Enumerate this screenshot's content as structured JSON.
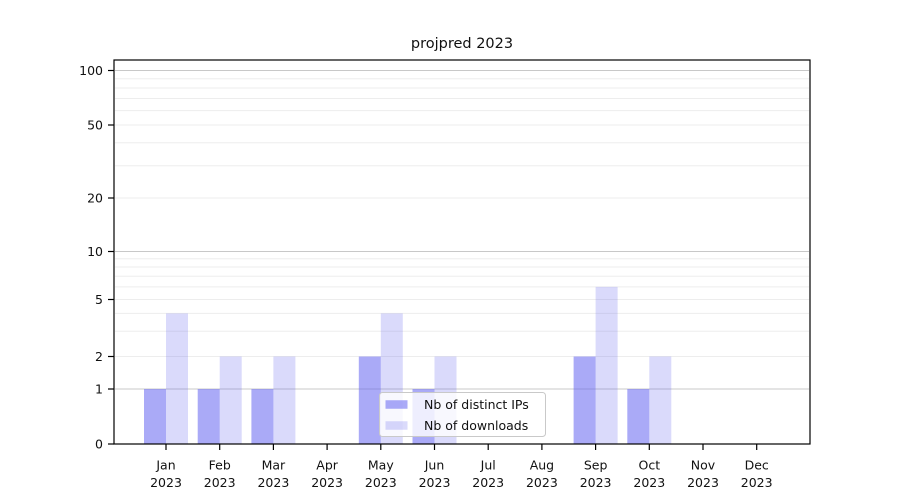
{
  "figure": {
    "background": "#ffffff"
  },
  "chart_data": {
    "type": "bar",
    "title": "projpred 2023",
    "categories": [
      "Jan",
      "Feb",
      "Mar",
      "Apr",
      "May",
      "Jun",
      "Jul",
      "Aug",
      "Sep",
      "Oct",
      "Nov",
      "Dec"
    ],
    "x_tick_second_line": "2023",
    "series": [
      {
        "name": "Nb of distinct IPs",
        "values": [
          1,
          1,
          1,
          0,
          2,
          1,
          0,
          0,
          2,
          1,
          0,
          0
        ],
        "fill": "rgba(100,100,240,0.55)"
      },
      {
        "name": "Nb of downloads",
        "values": [
          4,
          2,
          2,
          0,
          4,
          2,
          0,
          0,
          6,
          2,
          0,
          0
        ],
        "fill": "rgba(100,100,240,0.24)"
      }
    ],
    "y_axis": {
      "scale": "log-above-1-linear-below-1",
      "tick_labels": [
        "0",
        "1",
        "2",
        "5",
        "10",
        "20",
        "50",
        "100"
      ],
      "ticks": [
        0,
        1,
        2,
        5,
        10,
        20,
        50,
        100
      ],
      "minor_gridline_values": [
        3,
        4,
        6,
        7,
        8,
        9,
        30,
        40,
        60,
        70,
        80,
        90
      ],
      "light_gridline_ticks": [
        2,
        5,
        20,
        50
      ],
      "major_gridline_ticks": [
        1,
        10,
        100
      ],
      "ylim": [
        0,
        115
      ]
    },
    "x_axis": {
      "tick_count": 12
    },
    "legend": {
      "position": "lower-center",
      "items": [
        "Nb of distinct IPs",
        "Nb of downloads"
      ]
    },
    "colors": {
      "major_grid": "#c8c8c8",
      "minor_grid": "#ededed",
      "spine": "#000000",
      "text": "#111111",
      "legend_bg": "rgba(255,255,255,0.8)",
      "legend_border": "#c9c9c9"
    }
  }
}
